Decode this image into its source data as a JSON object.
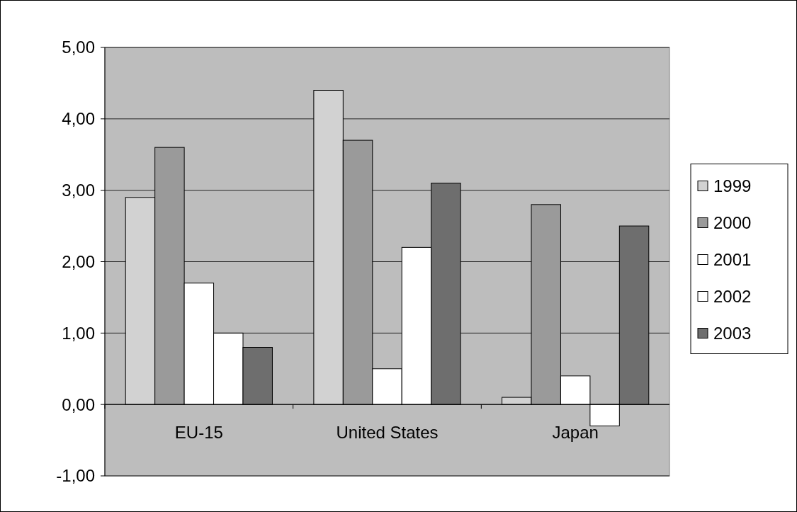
{
  "chart_data": {
    "type": "bar",
    "categories": [
      "EU-15",
      "United States",
      "Japan"
    ],
    "series": [
      {
        "name": "1999",
        "color": "#d2d2d2",
        "values": [
          2.9,
          4.4,
          0.1
        ]
      },
      {
        "name": "2000",
        "color": "#9a9a9a",
        "values": [
          3.6,
          3.7,
          2.8
        ]
      },
      {
        "name": "2001",
        "color": "#ffffff",
        "values": [
          1.7,
          0.5,
          0.4
        ]
      },
      {
        "name": "2002",
        "color": "#ffffff",
        "values": [
          1.0,
          2.2,
          -0.3
        ]
      },
      {
        "name": "2003",
        "color": "#6e6e6e",
        "values": [
          0.8,
          3.1,
          2.5
        ]
      }
    ],
    "ylim": [
      -1,
      5
    ],
    "yticks": [
      {
        "value": -1,
        "label": "-1,00"
      },
      {
        "value": 0,
        "label": "0,00"
      },
      {
        "value": 1,
        "label": "1,00"
      },
      {
        "value": 2,
        "label": "2,00"
      },
      {
        "value": 3,
        "label": "3,00"
      },
      {
        "value": 4,
        "label": "4,00"
      },
      {
        "value": 5,
        "label": "5,00"
      }
    ],
    "grid": "y",
    "legend": "right"
  }
}
